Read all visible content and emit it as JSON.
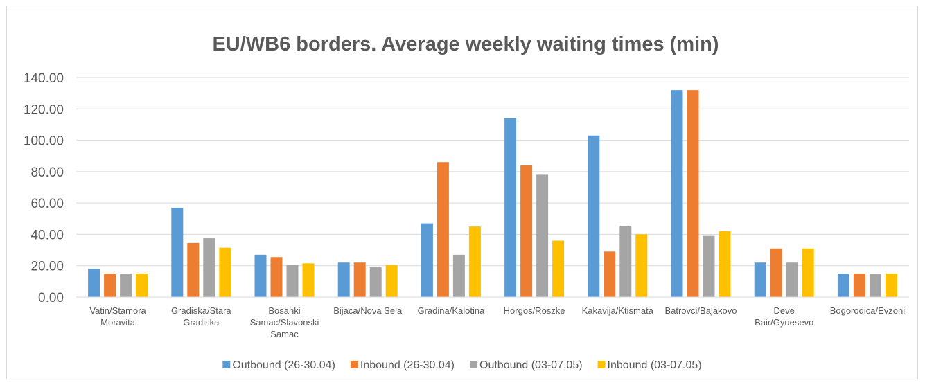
{
  "chart_data": {
    "type": "bar",
    "title": "EU/WB6 borders. Average weekly waiting times (min)",
    "xlabel": "",
    "ylabel": "",
    "ylim": [
      0,
      140
    ],
    "yticks": [
      "0.00",
      "20.00",
      "40.00",
      "60.00",
      "80.00",
      "100.00",
      "120.00",
      "140.00"
    ],
    "grid": true,
    "legend_position": "bottom",
    "categories": [
      "Vatin/Stamora Moravita",
      "Gradiska/Stara Gradiska",
      "Bosanki Samac/Slavonski Samac",
      "Bijaca/Nova Sela",
      "Gradina/Kalotina",
      "Horgos/Roszke",
      "Kakavija/Ktismata",
      "Batrovci/Bajakovo",
      "Deve Bair/Gyuesevo",
      "Bogorodica/Evzoni"
    ],
    "series": [
      {
        "name": "Outbound (26-30.04)",
        "color": "#5b9bd5",
        "values": [
          18,
          57,
          27,
          22,
          47,
          114,
          103,
          132,
          22,
          15
        ]
      },
      {
        "name": "Inbound (26-30.04)",
        "color": "#ed7d31",
        "values": [
          15,
          34.5,
          25.5,
          22,
          86,
          84,
          29,
          132,
          31,
          15
        ]
      },
      {
        "name": "Outbound (03-07.05)",
        "color": "#a5a5a5",
        "values": [
          15,
          37.5,
          20.5,
          19,
          27,
          78,
          45.5,
          39,
          22,
          15
        ]
      },
      {
        "name": "Inbound (03-07.05)",
        "color": "#ffc000",
        "values": [
          15,
          31.5,
          21.5,
          20.5,
          45,
          36,
          40,
          42,
          31,
          15
        ]
      }
    ]
  }
}
